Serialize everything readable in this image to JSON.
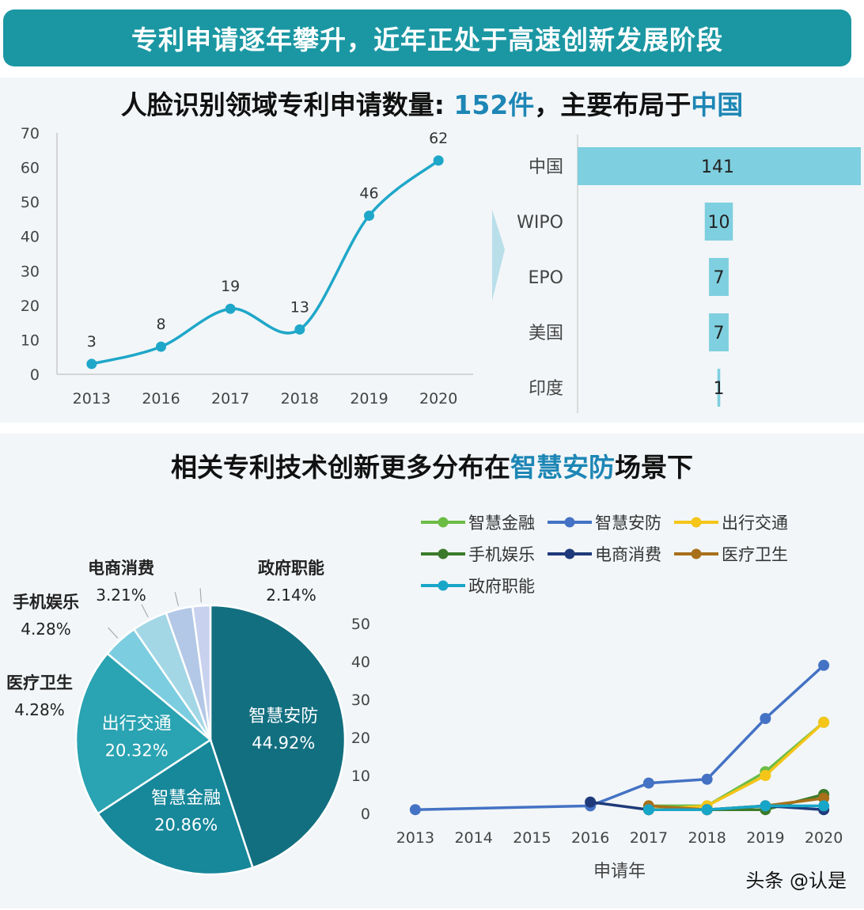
{
  "header": {
    "banner": "专利申请逐年攀升，近年正处于高速创新发展阶段",
    "title_top_pre": "人脸识别领域专利申请数量: ",
    "title_top_count": "152件",
    "title_top_mid": "，主要布局于",
    "title_top_country": "中国",
    "title_bottom_pre": "相关专利技术创新更多分布在",
    "title_bottom_hl": "智慧安防",
    "title_bottom_post": "场景下"
  },
  "watermark": "头条 @认是",
  "colors": {
    "banner": "#1b97a3",
    "line": "#1fa7c9",
    "bar": "#7ecfdf",
    "highlight": "#1d86b5",
    "panel": "#f2f6f8"
  },
  "chart_data": [
    {
      "type": "line",
      "x": [
        "2013",
        "2016",
        "2017",
        "2018",
        "2019",
        "2020"
      ],
      "values": [
        3,
        8,
        19,
        13,
        46,
        62
      ],
      "ylim": [
        0,
        70
      ],
      "yticks": [
        0,
        10,
        20,
        30,
        40,
        50,
        60,
        70
      ],
      "smooth": true
    },
    {
      "type": "bar",
      "orientation": "horizontal",
      "categories": [
        "中国",
        "WIPO",
        "EPO",
        "美国",
        "印度"
      ],
      "values": [
        141,
        10,
        7,
        7,
        1
      ]
    },
    {
      "type": "pie",
      "slices": [
        {
          "name": "智慧安防",
          "value": 44.92,
          "label": "44.92%",
          "color": "#126f80",
          "inside": true
        },
        {
          "name": "智慧金融",
          "value": 20.86,
          "label": "20.86%",
          "color": "#17879a",
          "inside": true
        },
        {
          "name": "出行交通",
          "value": 20.32,
          "label": "20.32%",
          "color": "#2aa3b2",
          "inside": true
        },
        {
          "name": "医疗卫生",
          "value": 4.28,
          "label": "4.28%",
          "color": "#7ccde0",
          "inside": false
        },
        {
          "name": "手机娱乐",
          "value": 4.28,
          "label": "4.28%",
          "color": "#a3d7e6",
          "inside": false
        },
        {
          "name": "电商消费",
          "value": 3.21,
          "label": "3.21%",
          "color": "#b3c8e6",
          "inside": false
        },
        {
          "name": "政府职能",
          "value": 2.14,
          "label": "2.14%",
          "color": "#c8d2ee",
          "inside": false
        }
      ]
    },
    {
      "type": "line",
      "x": [
        "2013",
        "2014",
        "2015",
        "2016",
        "2017",
        "2018",
        "2019",
        "2020"
      ],
      "xlabel": "申请年",
      "ylim": [
        0,
        50
      ],
      "yticks": [
        0,
        10,
        20,
        30,
        40,
        50
      ],
      "series": [
        {
          "name": "智慧金融",
          "color": "#6cbd45",
          "values": [
            null,
            null,
            null,
            null,
            2,
            2,
            11,
            24
          ]
        },
        {
          "name": "智慧安防",
          "color": "#4472c4",
          "values": [
            1,
            null,
            null,
            2,
            8,
            9,
            25,
            39
          ]
        },
        {
          "name": "出行交通",
          "color": "#f5c518",
          "values": [
            null,
            null,
            null,
            null,
            1,
            2,
            10,
            24
          ]
        },
        {
          "name": "手机娱乐",
          "color": "#3b7a2a",
          "values": [
            null,
            null,
            null,
            null,
            1,
            1,
            1,
            5
          ]
        },
        {
          "name": "电商消费",
          "color": "#1f3a7a",
          "values": [
            null,
            null,
            null,
            3,
            1,
            1,
            2,
            1
          ]
        },
        {
          "name": "医疗卫生",
          "color": "#a8701a",
          "values": [
            null,
            null,
            null,
            null,
            2,
            1,
            2,
            4
          ]
        },
        {
          "name": "政府职能",
          "color": "#18a6c8",
          "values": [
            null,
            null,
            null,
            null,
            1,
            1,
            2,
            2
          ]
        }
      ]
    }
  ]
}
